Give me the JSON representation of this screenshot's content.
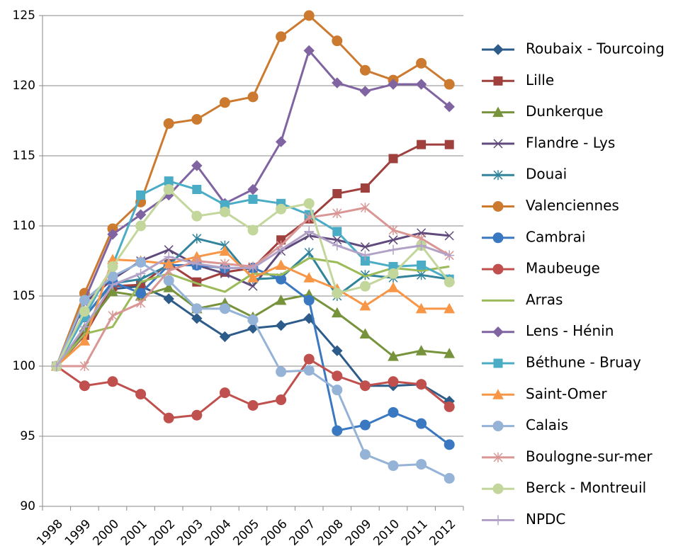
{
  "chart_data": {
    "type": "line",
    "categories": [
      "1998",
      "1999",
      "2000",
      "2001",
      "2002",
      "2003",
      "2004",
      "2005",
      "2006",
      "2007",
      "2008",
      "2009",
      "2010",
      "2011",
      "2012"
    ],
    "ylim": [
      90,
      125
    ],
    "yticks": [
      90,
      95,
      100,
      105,
      110,
      115,
      120,
      125
    ],
    "grid": true,
    "legend": "right",
    "series": [
      {
        "name": "Roubaix - Tourcoing",
        "color": "#2E5C8A",
        "marker": "diamond",
        "values": [
          100,
          102.5,
          105.5,
          105.7,
          104.8,
          103.4,
          102.1,
          102.7,
          102.9,
          103.4,
          101.1,
          98.6,
          98.6,
          98.7,
          97.5
        ]
      },
      {
        "name": "Lille",
        "color": "#A0403E",
        "marker": "square",
        "values": [
          100,
          102.2,
          105.7,
          105.8,
          107.3,
          106.0,
          106.7,
          107.0,
          109.0,
          110.5,
          112.3,
          112.7,
          114.8,
          115.8,
          115.8
        ]
      },
      {
        "name": "Dunkerque",
        "color": "#77933C",
        "marker": "triangle",
        "values": [
          100,
          102.7,
          105.3,
          105.0,
          105.6,
          104.1,
          104.5,
          103.5,
          104.7,
          105.1,
          103.8,
          102.3,
          100.7,
          101.1,
          100.9
        ]
      },
      {
        "name": "Flandre - Lys",
        "color": "#5F4A7B",
        "marker": "x",
        "values": [
          100,
          104.5,
          106.2,
          107.5,
          108.3,
          107.2,
          106.6,
          105.7,
          108.2,
          109.3,
          109.0,
          108.5,
          109.0,
          109.5,
          109.3
        ]
      },
      {
        "name": "Douai",
        "color": "#31849B",
        "marker": "asterisk",
        "values": [
          100,
          103.5,
          105.9,
          106.2,
          107.2,
          109.1,
          108.6,
          106.2,
          106.3,
          108.1,
          105.0,
          106.5,
          106.3,
          106.5,
          106.2
        ]
      },
      {
        "name": "Valenciennes",
        "color": "#CC7A30",
        "marker": "circle",
        "values": [
          100,
          105.2,
          109.8,
          111.7,
          117.3,
          117.6,
          118.8,
          119.2,
          123.5,
          125.0,
          123.2,
          121.1,
          120.4,
          121.6,
          120.1
        ]
      },
      {
        "name": "Cambrai",
        "color": "#3A78C2",
        "marker": "circle",
        "values": [
          100,
          103.5,
          106.0,
          105.2,
          107.2,
          107.2,
          107.0,
          107.0,
          106.2,
          104.7,
          95.4,
          95.8,
          96.7,
          95.9,
          94.4
        ]
      },
      {
        "name": "Maubeuge",
        "color": "#C0504D",
        "marker": "circle",
        "values": [
          100,
          98.6,
          98.9,
          98.0,
          96.3,
          96.5,
          98.1,
          97.2,
          97.6,
          100.5,
          99.3,
          98.6,
          98.9,
          98.7,
          97.1
        ]
      },
      {
        "name": "Arras",
        "color": "#9BBB59",
        "marker": "none",
        "values": [
          100,
          102.3,
          102.8,
          106.0,
          106.6,
          105.9,
          105.3,
          106.6,
          106.5,
          107.7,
          107.4,
          106.4,
          107.0,
          106.8,
          107.1
        ]
      },
      {
        "name": "Lens - Hénin",
        "color": "#8064A2",
        "marker": "diamond",
        "values": [
          100,
          104.7,
          109.4,
          110.8,
          112.2,
          114.3,
          111.6,
          112.6,
          116.0,
          122.5,
          120.2,
          119.6,
          120.1,
          120.1,
          118.5
        ]
      },
      {
        "name": "Béthune - Bruay",
        "color": "#4BACC6",
        "marker": "square",
        "values": [
          100,
          103.5,
          107.2,
          112.2,
          113.2,
          112.6,
          111.5,
          111.9,
          111.6,
          110.8,
          109.6,
          107.5,
          107.1,
          107.2,
          106.2
        ]
      },
      {
        "name": "Saint-Omer",
        "color": "#F79646",
        "marker": "triangle",
        "values": [
          100,
          101.8,
          107.6,
          107.5,
          107.3,
          107.8,
          108.2,
          106.3,
          107.2,
          106.3,
          105.5,
          104.3,
          105.6,
          104.1,
          104.1
        ]
      },
      {
        "name": "Calais",
        "color": "#95B3D7",
        "marker": "circle",
        "values": [
          100,
          104.7,
          106.4,
          107.4,
          106.1,
          104.1,
          104.1,
          103.3,
          99.6,
          99.7,
          98.3,
          93.7,
          92.9,
          93.0,
          92.0
        ]
      },
      {
        "name": "Boulogne-sur-mer",
        "color": "#D99694",
        "marker": "asterisk",
        "values": [
          100,
          100.0,
          103.6,
          104.5,
          106.8,
          107.5,
          107.3,
          107.1,
          108.6,
          110.6,
          110.9,
          111.3,
          109.7,
          109.1,
          107.9
        ]
      },
      {
        "name": "Berck - Montreuil",
        "color": "#C3D69B",
        "marker": "circle",
        "values": [
          100,
          103.9,
          107.1,
          110.0,
          112.6,
          110.7,
          111.0,
          109.7,
          111.2,
          111.6,
          105.2,
          105.7,
          106.6,
          108.6,
          106.0
        ]
      },
      {
        "name": "NPDC",
        "color": "#B3A2C7",
        "marker": "plus",
        "values": [
          100,
          102.8,
          105.8,
          106.6,
          107.8,
          107.3,
          107.0,
          107.0,
          108.3,
          109.6,
          108.6,
          107.9,
          108.3,
          108.6,
          107.9
        ]
      }
    ]
  }
}
